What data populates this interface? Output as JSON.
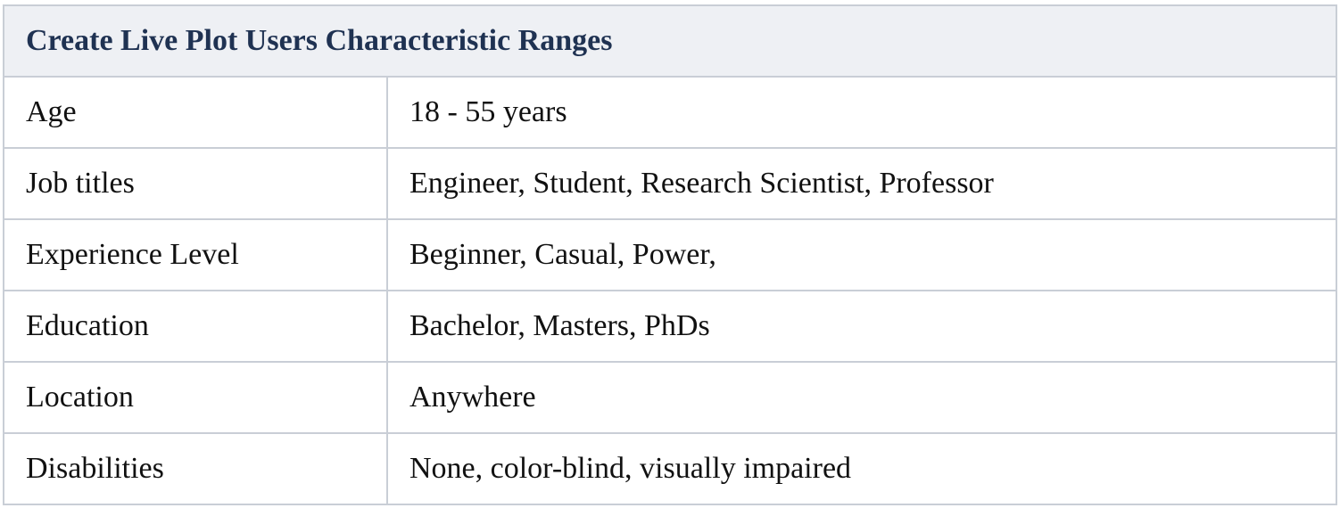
{
  "table": {
    "title": "Create Live Plot Users Characteristic Ranges",
    "rows": [
      {
        "label": "Age",
        "value": "18 - 55 years"
      },
      {
        "label": "Job titles",
        "value": "Engineer, Student, Research Scientist, Professor"
      },
      {
        "label": "Experience Level",
        "value": "Beginner, Casual, Power,"
      },
      {
        "label": "Education",
        "value": "Bachelor, Masters, PhDs"
      },
      {
        "label": "Location",
        "value": "Anywhere"
      },
      {
        "label": "Disabilities",
        "value": "None, color-blind, visually impaired"
      }
    ]
  },
  "colors": {
    "header_background": "#eef0f4",
    "header_text": "#1f3252",
    "border": "#c9ced6",
    "body_text": "#111111"
  }
}
